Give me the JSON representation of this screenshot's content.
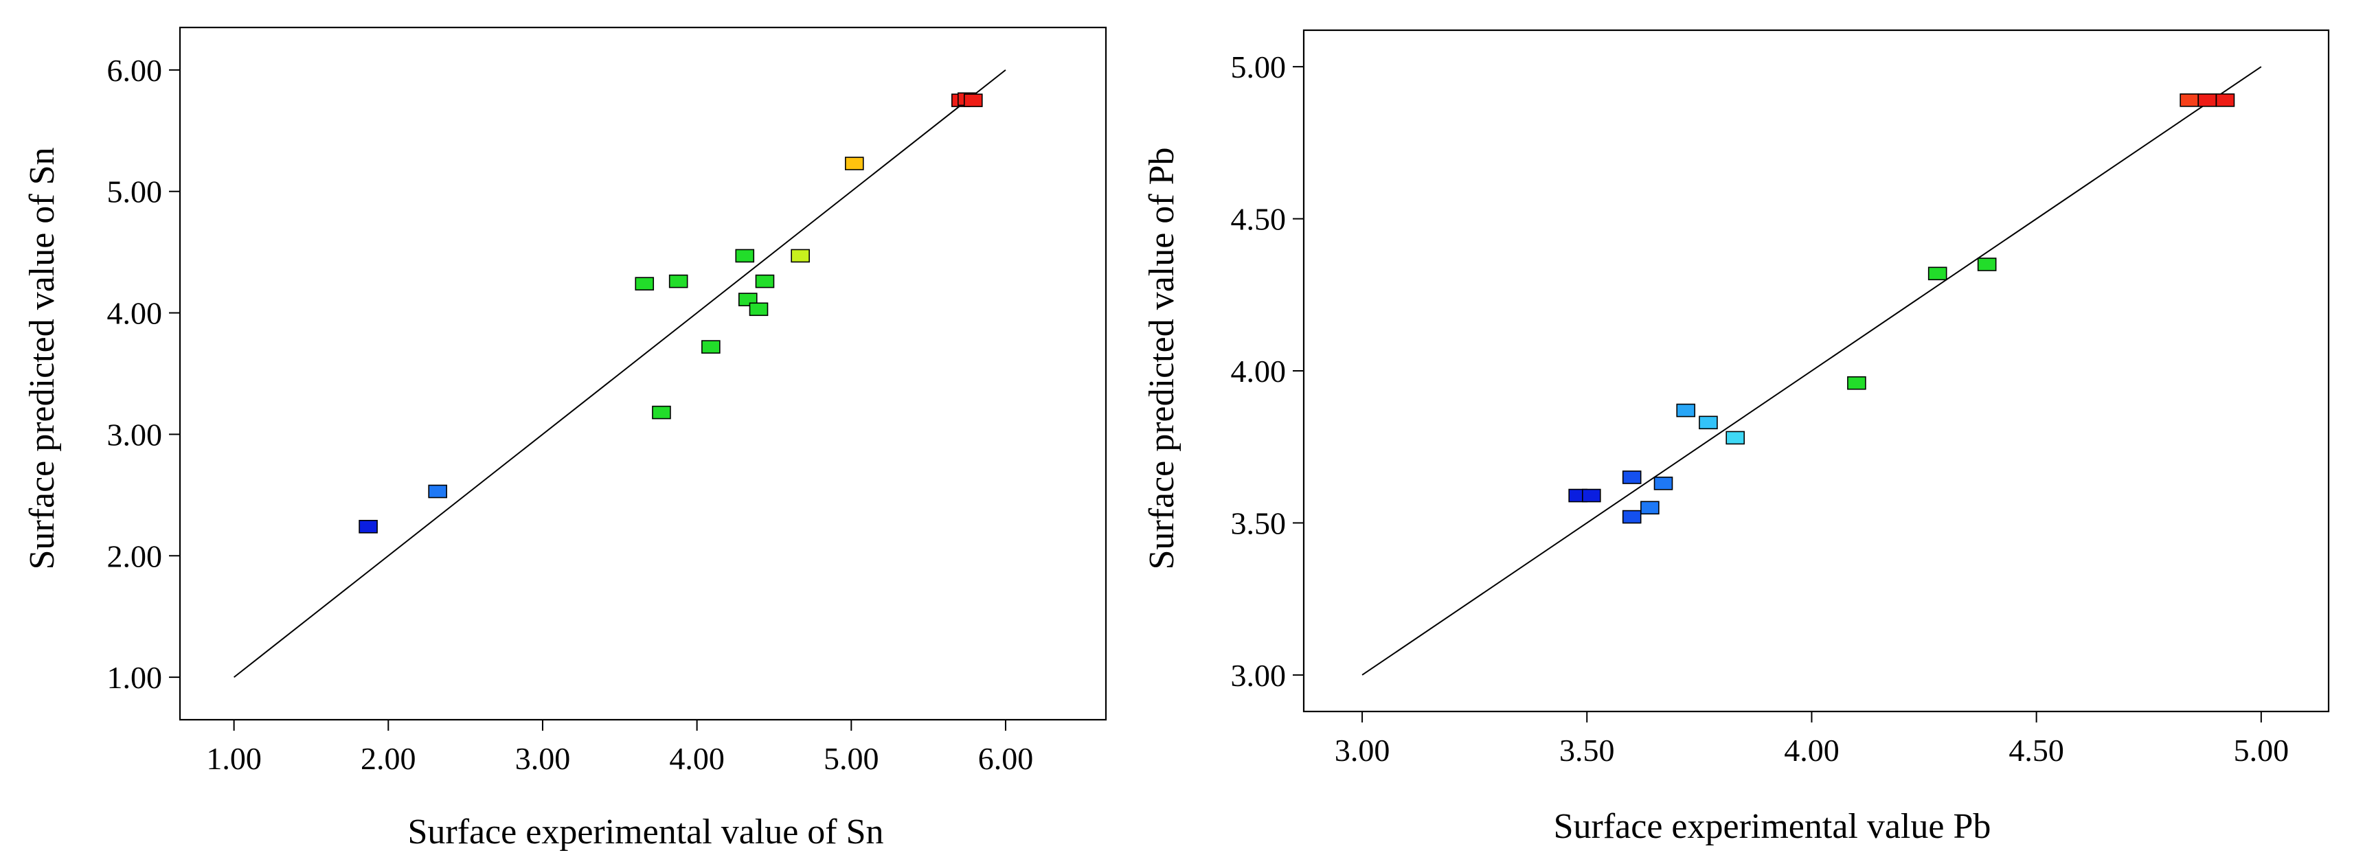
{
  "chart_data": [
    {
      "type": "scatter",
      "title": "",
      "xlabel": "Surface experimental value of Sn",
      "ylabel": "Surface predicted value of Sn",
      "xlim": [
        0.65,
        6.65
      ],
      "ylim": [
        0.65,
        6.35
      ],
      "xticks": [
        1,
        2,
        3,
        4,
        5,
        6
      ],
      "yticks": [
        1,
        2,
        3,
        4,
        5,
        6
      ],
      "xtick_labels": [
        "1.00",
        "2.00",
        "3.00",
        "4.00",
        "5.00",
        "6.00"
      ],
      "ytick_labels": [
        "1.00",
        "2.00",
        "3.00",
        "4.00",
        "5.00",
        "6.00"
      ],
      "reference_line": {
        "from": [
          1.0,
          1.0
        ],
        "to": [
          6.0,
          6.0
        ]
      },
      "grid": false,
      "legend": "none",
      "points": [
        {
          "x": 1.87,
          "y": 2.24,
          "color": "#0a1ee0"
        },
        {
          "x": 2.32,
          "y": 2.53,
          "color": "#1e78f5"
        },
        {
          "x": 3.66,
          "y": 4.24,
          "color": "#22dd2a"
        },
        {
          "x": 3.77,
          "y": 3.18,
          "color": "#22dd2a"
        },
        {
          "x": 3.88,
          "y": 4.26,
          "color": "#22dd2a"
        },
        {
          "x": 4.09,
          "y": 3.72,
          "color": "#22dd2a"
        },
        {
          "x": 4.31,
          "y": 4.47,
          "color": "#22dd2a"
        },
        {
          "x": 4.33,
          "y": 4.11,
          "color": "#22dd2a"
        },
        {
          "x": 4.4,
          "y": 4.03,
          "color": "#22dd2a"
        },
        {
          "x": 4.44,
          "y": 4.26,
          "color": "#22dd2a"
        },
        {
          "x": 4.67,
          "y": 4.47,
          "color": "#c8f01e"
        },
        {
          "x": 5.02,
          "y": 5.23,
          "color": "#ffc20e"
        },
        {
          "x": 5.71,
          "y": 5.75,
          "color": "#ee1c16"
        },
        {
          "x": 5.75,
          "y": 5.76,
          "color": "#ee1c16"
        },
        {
          "x": 5.79,
          "y": 5.75,
          "color": "#ee1c16"
        }
      ]
    },
    {
      "type": "scatter",
      "title": "",
      "xlabel": "Surface experimental value Pb",
      "ylabel": "Surface predicted value of Pb",
      "xlim": [
        2.87,
        5.15
      ],
      "ylim": [
        2.88,
        5.12
      ],
      "xticks": [
        3.0,
        3.5,
        4.0,
        4.5,
        5.0
      ],
      "yticks": [
        3.0,
        3.5,
        4.0,
        4.5,
        5.0
      ],
      "xtick_labels": [
        "3.00",
        "3.50",
        "4.00",
        "4.50",
        "5.00"
      ],
      "ytick_labels": [
        "3.00",
        "3.50",
        "4.00",
        "4.50",
        "5.00"
      ],
      "reference_line": {
        "from": [
          3.0,
          3.0
        ],
        "to": [
          5.0,
          5.0
        ]
      },
      "grid": false,
      "legend": "none",
      "points": [
        {
          "x": 3.48,
          "y": 3.59,
          "color": "#0a1ee0"
        },
        {
          "x": 3.51,
          "y": 3.59,
          "color": "#0a1ee0"
        },
        {
          "x": 3.6,
          "y": 3.65,
          "color": "#1450ee"
        },
        {
          "x": 3.6,
          "y": 3.52,
          "color": "#1450ee"
        },
        {
          "x": 3.64,
          "y": 3.55,
          "color": "#1e78f5"
        },
        {
          "x": 3.67,
          "y": 3.63,
          "color": "#1e78f5"
        },
        {
          "x": 3.72,
          "y": 3.87,
          "color": "#28a6f7"
        },
        {
          "x": 3.77,
          "y": 3.83,
          "color": "#33c2f8"
        },
        {
          "x": 3.83,
          "y": 3.78,
          "color": "#3fd8f5"
        },
        {
          "x": 4.1,
          "y": 3.96,
          "color": "#22dd2a"
        },
        {
          "x": 4.28,
          "y": 4.32,
          "color": "#22dd2a"
        },
        {
          "x": 4.39,
          "y": 4.35,
          "color": "#22dd2a"
        },
        {
          "x": 4.84,
          "y": 4.89,
          "color": "#f6401a"
        },
        {
          "x": 4.88,
          "y": 4.89,
          "color": "#ee1c16"
        },
        {
          "x": 4.92,
          "y": 4.89,
          "color": "#ee1c16"
        }
      ]
    }
  ]
}
